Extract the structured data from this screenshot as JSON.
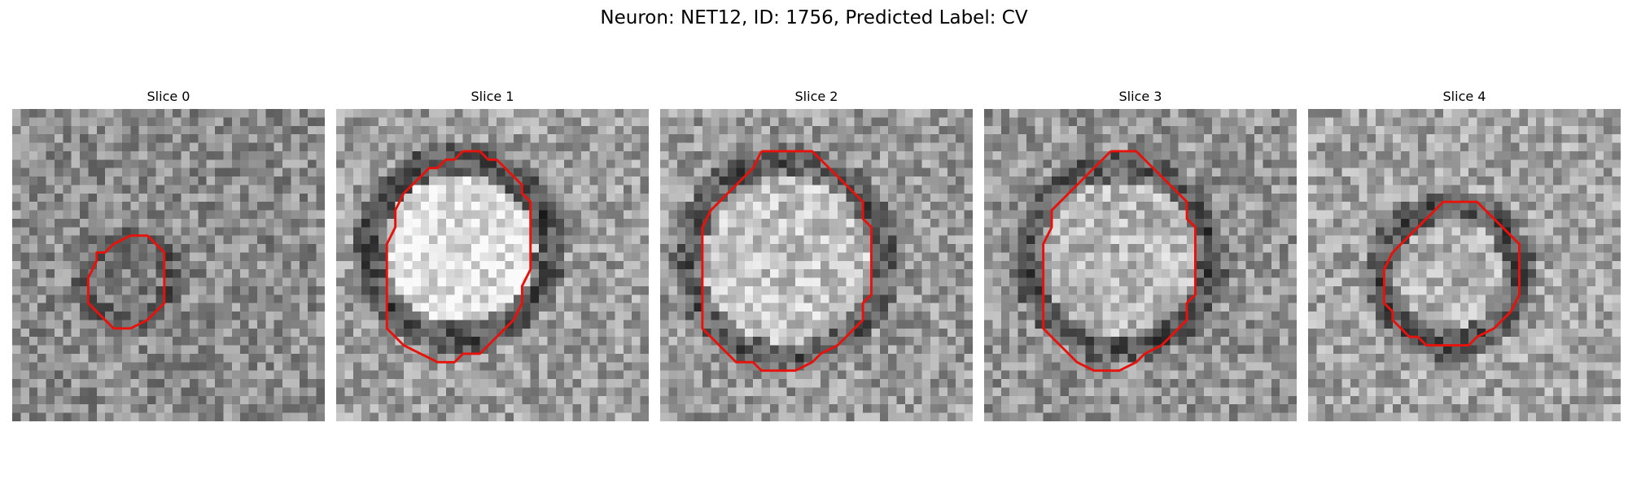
{
  "figure": {
    "title": "Neuron: NET12, ID: 1756, Predicted Label: CV"
  },
  "contour_color": "#e8120c",
  "panels": [
    {
      "title": "Slice 0",
      "seed": 11,
      "base": 0.55,
      "rim": 0.34,
      "inner": 0.5,
      "contour": [
        [
          12,
          16
        ],
        [
          14,
          15
        ],
        [
          16,
          15
        ],
        [
          17,
          16
        ],
        [
          18,
          17
        ],
        [
          18,
          18
        ],
        [
          18,
          19
        ],
        [
          18,
          20
        ],
        [
          18,
          21
        ],
        [
          18,
          22
        ],
        [
          18,
          23
        ],
        [
          17,
          24
        ],
        [
          16,
          25
        ],
        [
          14,
          26
        ],
        [
          12,
          26
        ],
        [
          11,
          25
        ],
        [
          10,
          24
        ],
        [
          9,
          23
        ],
        [
          9,
          22
        ],
        [
          9,
          21
        ],
        [
          9,
          20
        ],
        [
          10,
          18
        ],
        [
          10,
          17
        ],
        [
          11,
          17
        ],
        [
          12,
          16
        ]
      ]
    },
    {
      "title": "Slice 1",
      "seed": 23,
      "base": 0.62,
      "rim": 0.28,
      "inner": 0.88,
      "contour": [
        [
          15,
          5
        ],
        [
          17,
          5
        ],
        [
          18,
          6
        ],
        [
          19,
          6
        ],
        [
          20,
          7
        ],
        [
          21,
          8
        ],
        [
          22,
          9
        ],
        [
          22,
          10
        ],
        [
          23,
          11
        ],
        [
          23,
          13
        ],
        [
          23,
          15
        ],
        [
          23,
          17
        ],
        [
          23,
          19
        ],
        [
          22,
          21
        ],
        [
          22,
          23
        ],
        [
          21,
          25
        ],
        [
          20,
          26
        ],
        [
          19,
          27
        ],
        [
          18,
          28
        ],
        [
          17,
          29
        ],
        [
          15,
          29
        ],
        [
          14,
          30
        ],
        [
          12,
          30
        ],
        [
          10,
          29
        ],
        [
          8,
          28
        ],
        [
          7,
          27
        ],
        [
          6,
          26
        ],
        [
          6,
          24
        ],
        [
          6,
          22
        ],
        [
          6,
          20
        ],
        [
          6,
          18
        ],
        [
          6,
          16
        ],
        [
          7,
          14
        ],
        [
          7,
          12
        ],
        [
          8,
          10
        ],
        [
          9,
          9
        ],
        [
          10,
          8
        ],
        [
          11,
          7
        ],
        [
          12,
          7
        ],
        [
          13,
          6
        ],
        [
          14,
          6
        ],
        [
          15,
          5
        ]
      ]
    },
    {
      "title": "Slice 2",
      "seed": 37,
      "base": 0.6,
      "rim": 0.32,
      "inner": 0.76,
      "contour": [
        [
          12,
          5
        ],
        [
          14,
          5
        ],
        [
          16,
          5
        ],
        [
          18,
          5
        ],
        [
          19,
          6
        ],
        [
          20,
          7
        ],
        [
          21,
          8
        ],
        [
          22,
          9
        ],
        [
          23,
          10
        ],
        [
          24,
          11
        ],
        [
          24,
          13
        ],
        [
          25,
          14
        ],
        [
          25,
          16
        ],
        [
          25,
          18
        ],
        [
          25,
          20
        ],
        [
          25,
          22
        ],
        [
          24,
          23
        ],
        [
          24,
          25
        ],
        [
          23,
          26
        ],
        [
          22,
          27
        ],
        [
          21,
          28
        ],
        [
          19,
          29
        ],
        [
          18,
          30
        ],
        [
          16,
          31
        ],
        [
          14,
          31
        ],
        [
          12,
          31
        ],
        [
          11,
          30
        ],
        [
          9,
          30
        ],
        [
          8,
          29
        ],
        [
          7,
          28
        ],
        [
          6,
          27
        ],
        [
          5,
          26
        ],
        [
          5,
          24
        ],
        [
          5,
          22
        ],
        [
          5,
          20
        ],
        [
          5,
          18
        ],
        [
          5,
          16
        ],
        [
          5,
          14
        ],
        [
          6,
          12
        ],
        [
          7,
          11
        ],
        [
          8,
          10
        ],
        [
          9,
          9
        ],
        [
          10,
          8
        ],
        [
          11,
          7
        ],
        [
          12,
          5
        ]
      ]
    },
    {
      "title": "Slice 3",
      "seed": 53,
      "base": 0.58,
      "rim": 0.3,
      "inner": 0.72,
      "contour": [
        [
          15,
          5
        ],
        [
          18,
          5
        ],
        [
          19,
          6
        ],
        [
          20,
          7
        ],
        [
          21,
          8
        ],
        [
          22,
          9
        ],
        [
          23,
          10
        ],
        [
          24,
          11
        ],
        [
          24,
          13
        ],
        [
          25,
          14
        ],
        [
          25,
          16
        ],
        [
          25,
          18
        ],
        [
          25,
          20
        ],
        [
          25,
          22
        ],
        [
          24,
          23
        ],
        [
          24,
          25
        ],
        [
          23,
          26
        ],
        [
          22,
          27
        ],
        [
          21,
          28
        ],
        [
          19,
          29
        ],
        [
          18,
          30
        ],
        [
          16,
          31
        ],
        [
          13,
          31
        ],
        [
          11,
          30
        ],
        [
          10,
          29
        ],
        [
          9,
          28
        ],
        [
          8,
          27
        ],
        [
          7,
          26
        ],
        [
          7,
          24
        ],
        [
          7,
          22
        ],
        [
          7,
          20
        ],
        [
          7,
          18
        ],
        [
          7,
          16
        ],
        [
          8,
          14
        ],
        [
          8,
          12
        ],
        [
          9,
          11
        ],
        [
          10,
          10
        ],
        [
          11,
          9
        ],
        [
          12,
          8
        ],
        [
          13,
          7
        ],
        [
          14,
          6
        ],
        [
          15,
          5
        ]
      ]
    },
    {
      "title": "Slice 4",
      "seed": 71,
      "base": 0.64,
      "rim": 0.3,
      "inner": 0.7,
      "contour": [
        [
          17,
          11
        ],
        [
          20,
          11
        ],
        [
          21,
          12
        ],
        [
          22,
          13
        ],
        [
          23,
          14
        ],
        [
          24,
          15
        ],
        [
          25,
          16
        ],
        [
          25,
          18
        ],
        [
          25,
          20
        ],
        [
          25,
          22
        ],
        [
          24,
          24
        ],
        [
          23,
          25
        ],
        [
          22,
          26
        ],
        [
          20,
          27
        ],
        [
          19,
          28
        ],
        [
          17,
          28
        ],
        [
          15,
          28
        ],
        [
          14,
          28
        ],
        [
          13,
          27
        ],
        [
          12,
          27
        ],
        [
          11,
          26
        ],
        [
          10,
          25
        ],
        [
          10,
          24
        ],
        [
          9,
          23
        ],
        [
          9,
          21
        ],
        [
          9,
          19
        ],
        [
          10,
          17
        ],
        [
          11,
          16
        ],
        [
          12,
          15
        ],
        [
          13,
          14
        ],
        [
          14,
          13
        ],
        [
          15,
          12
        ],
        [
          16,
          11
        ],
        [
          17,
          11
        ]
      ]
    }
  ]
}
